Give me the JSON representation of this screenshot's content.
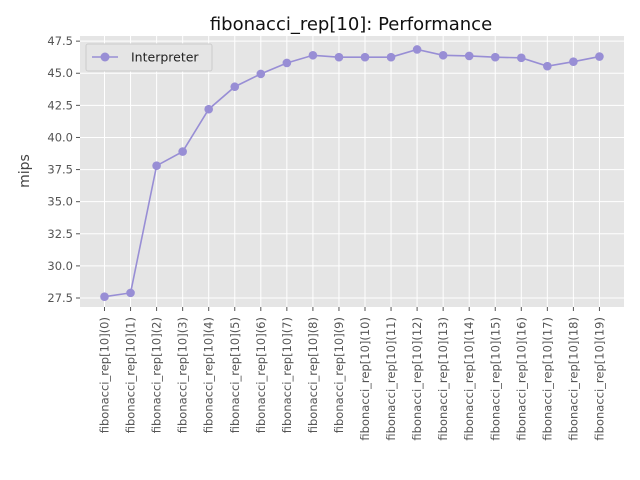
{
  "chart_data": {
    "type": "line",
    "title": "fibonacci_rep[10]: Performance",
    "xlabel": "",
    "ylabel": "mips",
    "categories": [
      "fibonacci_rep[10](0)",
      "fibonacci_rep[10](1)",
      "fibonacci_rep[10](2)",
      "fibonacci_rep[10](3)",
      "fibonacci_rep[10](4)",
      "fibonacci_rep[10](5)",
      "fibonacci_rep[10](6)",
      "fibonacci_rep[10](7)",
      "fibonacci_rep[10](8)",
      "fibonacci_rep[10](9)",
      "fibonacci_rep[10](10)",
      "fibonacci_rep[10](11)",
      "fibonacci_rep[10](12)",
      "fibonacci_rep[10](13)",
      "fibonacci_rep[10](14)",
      "fibonacci_rep[10](15)",
      "fibonacci_rep[10](16)",
      "fibonacci_rep[10](17)",
      "fibonacci_rep[10](18)",
      "fibonacci_rep[10](19)"
    ],
    "series": [
      {
        "name": "Interpreter",
        "color": "#988ED5",
        "values": [
          27.6,
          27.9,
          37.8,
          38.9,
          42.2,
          43.95,
          44.95,
          45.8,
          46.4,
          46.25,
          46.25,
          46.25,
          46.85,
          46.4,
          46.35,
          46.25,
          46.2,
          45.55,
          45.9,
          46.3
        ]
      }
    ],
    "ylim": [
      26.8,
      47.9
    ],
    "yticks": [
      27.5,
      30.0,
      32.5,
      35.0,
      37.5,
      40.0,
      42.5,
      45.0,
      47.5
    ],
    "grid": true,
    "legend": "upper-left",
    "style": {
      "background": "#E5E5E5",
      "grid_color": "#FFFFFF"
    }
  }
}
